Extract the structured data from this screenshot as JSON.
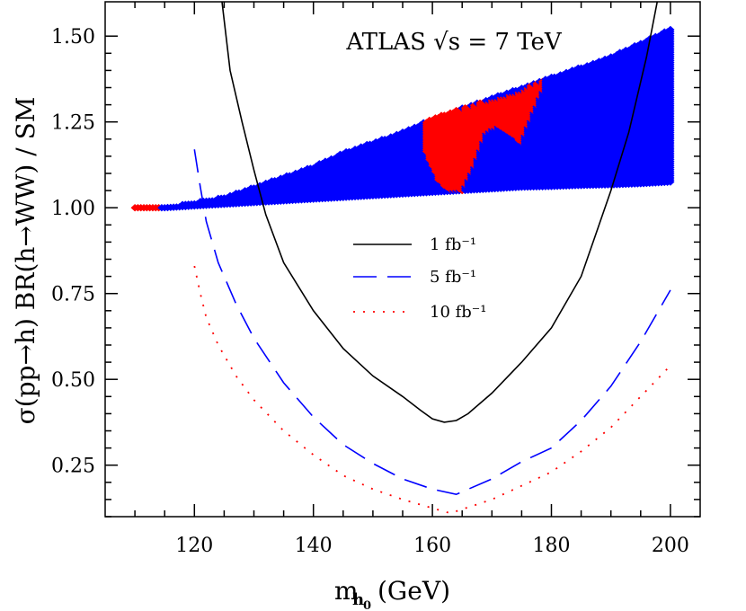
{
  "chart_data": {
    "type": "scatter",
    "annotation": "ATLAS √s = 7 TeV",
    "xlabel": "m_h0 (GeV)",
    "ylabel": "σ(pp→h) BR(h→WW) / SM",
    "xlim": [
      105,
      205
    ],
    "ylim": [
      0.1,
      1.6
    ],
    "xticks": [
      120,
      140,
      160,
      180,
      200
    ],
    "yticks": [
      0.25,
      0.5,
      0.75,
      1.0,
      1.25,
      1.5
    ],
    "ytick_labels": [
      "0.25",
      "0.50",
      "0.75",
      "1.00",
      "1.25",
      "1.50"
    ],
    "colors": {
      "allowed": "#0000ff",
      "excluded": "#ff0000",
      "limit_1fb": "#000000",
      "limit_5fb": "#0000ff",
      "limit_10fb": "#ff0000"
    },
    "band": {
      "x": [
        110,
        115,
        120,
        125,
        130,
        135,
        140,
        145,
        150,
        155,
        160,
        165,
        170,
        175,
        180,
        185,
        190,
        195,
        200
      ],
      "lower": [
        1.0,
        1.0,
        1.005,
        1.01,
        1.015,
        1.02,
        1.025,
        1.03,
        1.035,
        1.04,
        1.045,
        1.05,
        1.055,
        1.06,
        1.062,
        1.065,
        1.067,
        1.07,
        1.075
      ],
      "upper": [
        1.0,
        1.0,
        1.015,
        1.03,
        1.06,
        1.09,
        1.12,
        1.16,
        1.19,
        1.22,
        1.26,
        1.29,
        1.32,
        1.35,
        1.38,
        1.41,
        1.44,
        1.48,
        1.52
      ],
      "excluded_low_end": 114,
      "excluded_region": [
        {
          "x": 159,
          "low": 1.16,
          "high": 1.26
        },
        {
          "x": 161,
          "low": 1.08,
          "high": 1.27
        },
        {
          "x": 163,
          "low": 1.05,
          "high": 1.28
        },
        {
          "x": 165,
          "low": 1.05,
          "high": 1.29
        },
        {
          "x": 167,
          "low": 1.12,
          "high": 1.3
        },
        {
          "x": 169,
          "low": 1.22,
          "high": 1.31
        },
        {
          "x": 171,
          "low": 1.24,
          "high": 1.32
        },
        {
          "x": 173,
          "low": 1.22,
          "high": 1.33
        },
        {
          "x": 175,
          "low": 1.19,
          "high": 1.34
        },
        {
          "x": 177,
          "low": 1.28,
          "high": 1.36
        },
        {
          "x": 178.5,
          "low": 1.34,
          "high": 1.37
        }
      ]
    },
    "series": [
      {
        "name": "1 fb⁻¹",
        "style": "solid",
        "x": [
          124.5,
          126,
          128,
          130,
          132,
          135,
          140,
          145,
          150,
          155,
          158,
          160,
          162,
          164,
          166,
          170,
          175,
          180,
          185,
          188,
          190,
          193,
          196,
          198
        ],
        "y": [
          1.62,
          1.4,
          1.25,
          1.11,
          0.98,
          0.84,
          0.7,
          0.59,
          0.51,
          0.45,
          0.41,
          0.385,
          0.375,
          0.38,
          0.4,
          0.46,
          0.55,
          0.65,
          0.8,
          0.95,
          1.05,
          1.22,
          1.44,
          1.62
        ]
      },
      {
        "name": "5 fb⁻¹",
        "style": "dashed",
        "x": [
          120,
          121,
          122,
          124,
          127,
          130,
          135,
          140,
          145,
          150,
          155,
          160,
          164,
          170,
          175,
          180,
          185,
          190,
          195,
          200
        ],
        "y": [
          1.17,
          1.06,
          0.96,
          0.84,
          0.72,
          0.62,
          0.49,
          0.39,
          0.31,
          0.255,
          0.21,
          0.18,
          0.165,
          0.21,
          0.26,
          0.3,
          0.38,
          0.48,
          0.61,
          0.76
        ]
      },
      {
        "name": "10 fb⁻¹",
        "style": "dotted",
        "x": [
          120,
          121,
          122,
          124,
          127,
          130,
          135,
          140,
          145,
          150,
          155,
          160,
          163,
          170,
          175,
          180,
          185,
          190,
          195,
          200
        ],
        "y": [
          0.83,
          0.75,
          0.68,
          0.6,
          0.51,
          0.44,
          0.35,
          0.28,
          0.22,
          0.18,
          0.15,
          0.125,
          0.11,
          0.15,
          0.19,
          0.23,
          0.29,
          0.36,
          0.45,
          0.54
        ]
      }
    ],
    "legend_position": "center"
  }
}
